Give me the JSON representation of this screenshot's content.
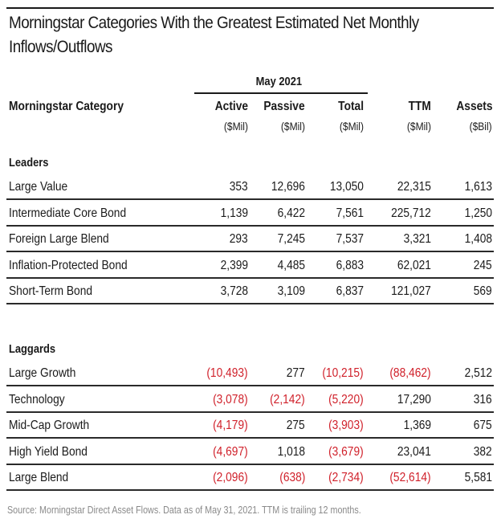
{
  "title_line1": "Morningstar Categories With the Greatest Estimated Net Monthly",
  "title_line2": "Inflows/Outflows",
  "header": {
    "group_label": "May 2021",
    "category_label": "Morningstar Category",
    "columns": [
      {
        "label": "Active",
        "unit": "($Mil)"
      },
      {
        "label": "Passive",
        "unit": "($Mil)"
      },
      {
        "label": "Total",
        "unit": "($Mil)"
      },
      {
        "label": "TTM",
        "unit": "($Mil)"
      },
      {
        "label": "Assets",
        "unit": "($Bil)"
      }
    ]
  },
  "sections": [
    {
      "label": "Leaders",
      "rows": [
        {
          "category": "Large Value",
          "values": [
            "353",
            "12,696",
            "13,050",
            "22,315",
            "1,613"
          ],
          "negative": [
            false,
            false,
            false,
            false,
            false
          ]
        },
        {
          "category": "Intermediate Core Bond",
          "values": [
            "1,139",
            "6,422",
            "7,561",
            "225,712",
            "1,250"
          ],
          "negative": [
            false,
            false,
            false,
            false,
            false
          ]
        },
        {
          "category": "Foreign Large Blend",
          "values": [
            "293",
            "7,245",
            "7,537",
            "3,321",
            "1,408"
          ],
          "negative": [
            false,
            false,
            false,
            false,
            false
          ]
        },
        {
          "category": "Inflation-Protected Bond",
          "values": [
            "2,399",
            "4,485",
            "6,883",
            "62,021",
            "245"
          ],
          "negative": [
            false,
            false,
            false,
            false,
            false
          ]
        },
        {
          "category": "Short-Term Bond",
          "values": [
            "3,728",
            "3,109",
            "6,837",
            "121,027",
            "569"
          ],
          "negative": [
            false,
            false,
            false,
            false,
            false
          ]
        }
      ]
    },
    {
      "label": "Laggards",
      "rows": [
        {
          "category": "Large Growth",
          "values": [
            "(10,493)",
            "277",
            "(10,215)",
            "(88,462)",
            "2,512"
          ],
          "negative": [
            true,
            false,
            true,
            true,
            false
          ]
        },
        {
          "category": "Technology",
          "values": [
            "(3,078)",
            "(2,142)",
            "(5,220)",
            "17,290",
            "316"
          ],
          "negative": [
            true,
            true,
            true,
            false,
            false
          ]
        },
        {
          "category": "Mid-Cap Growth",
          "values": [
            "(4,179)",
            "275",
            "(3,903)",
            "1,369",
            "675"
          ],
          "negative": [
            true,
            false,
            true,
            false,
            false
          ]
        },
        {
          "category": "High Yield Bond",
          "values": [
            "(4,697)",
            "1,018",
            "(3,679)",
            "23,041",
            "382"
          ],
          "negative": [
            true,
            false,
            true,
            false,
            false
          ]
        },
        {
          "category": "Large Blend",
          "values": [
            "(2,096)",
            "(638)",
            "(2,734)",
            "(52,614)",
            "5,581"
          ],
          "negative": [
            true,
            true,
            true,
            true,
            false
          ]
        }
      ]
    }
  ],
  "footnote": "Source: Morningstar Direct Asset Flows. Data as of May 31, 2021. TTM is trailing 12 months.",
  "colors": {
    "negative": "#d0202a",
    "text": "#1a1a1a",
    "footnote": "#8a8a8a"
  }
}
